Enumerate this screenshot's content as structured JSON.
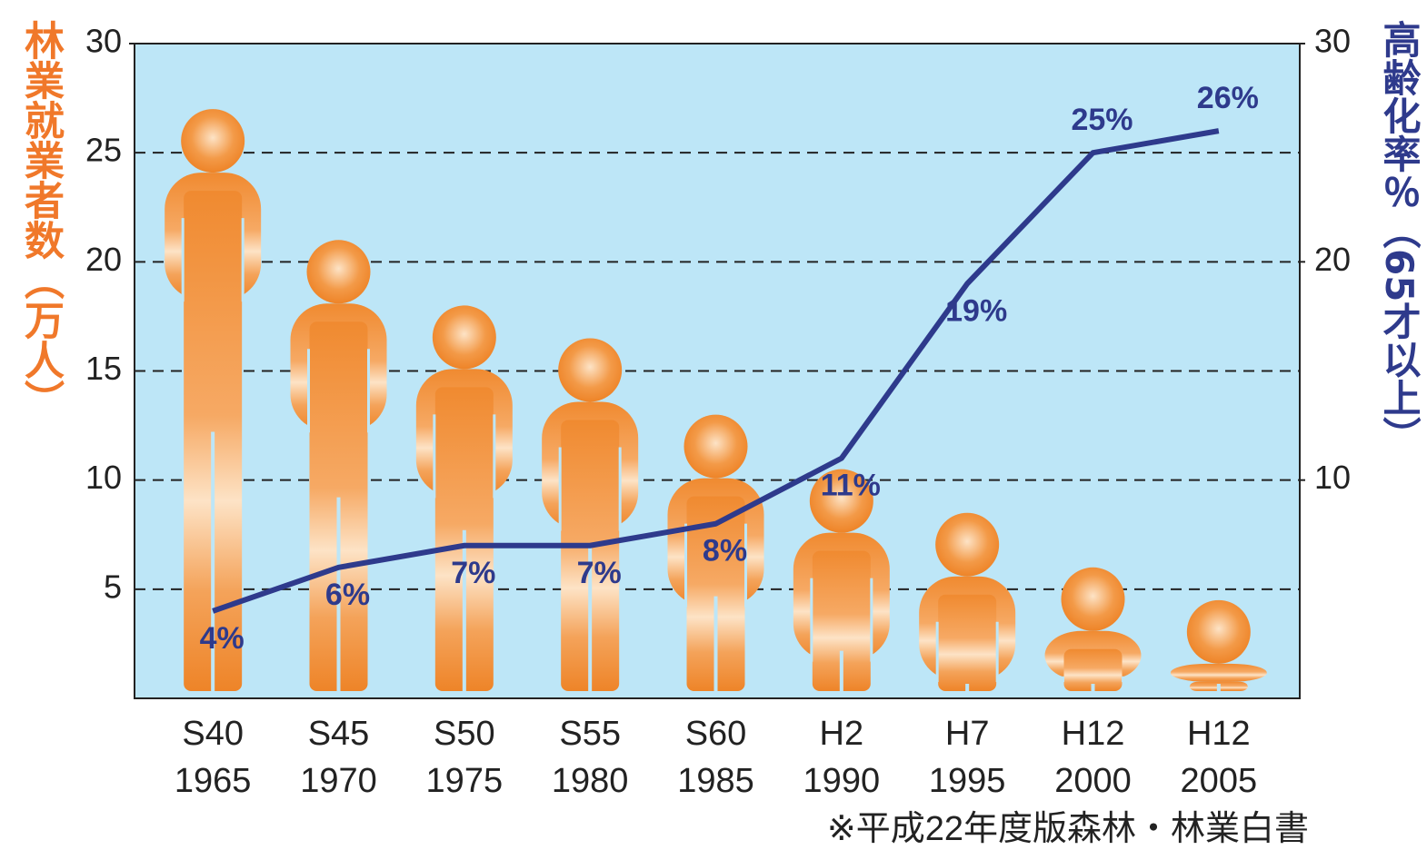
{
  "chart_data": {
    "type": "pictogram-bar-line",
    "y_axis_title": "林業就業者数（万人）",
    "y2_axis_title": "高齢化率％（65才以上）",
    "source": "※平成22年度版森林・林業白書",
    "categories": [
      [
        "S40",
        "1965"
      ],
      [
        "S45",
        "1970"
      ],
      [
        "S50",
        "1975"
      ],
      [
        "S55",
        "1980"
      ],
      [
        "S60",
        "1985"
      ],
      [
        "H2",
        "1990"
      ],
      [
        "H7",
        "1995"
      ],
      [
        "H12",
        "2000"
      ],
      [
        "H12",
        "2005"
      ]
    ],
    "series": [
      {
        "color": "#f08a30",
        "values": [
          27,
          21,
          18,
          16.5,
          13,
          10.5,
          8.5,
          6,
          4.5
        ]
      },
      {
        "color": "#2e3a8c",
        "axis": "y2",
        "values": [
          4,
          6,
          7,
          7,
          8,
          11,
          19,
          25,
          26
        ],
        "value_labels": [
          "4%",
          "6%",
          "7%",
          "7%",
          "8%",
          "11%",
          "19%",
          "25%",
          "26%"
        ]
      }
    ],
    "ylim": [
      0,
      30
    ],
    "yticks": [
      5,
      10,
      15,
      20,
      25,
      30
    ],
    "y2lim": [
      0,
      30
    ],
    "y2ticks": [
      10,
      20,
      30
    ],
    "grid": true,
    "background": "#bde6f7"
  }
}
